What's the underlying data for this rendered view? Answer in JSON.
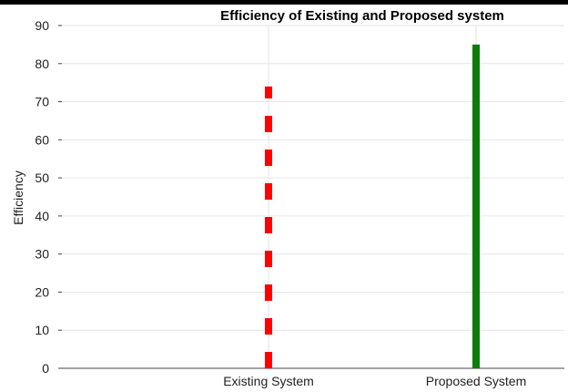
{
  "chart_data": {
    "type": "bar",
    "title": "Efficiency of Existing and Proposed system",
    "xlabel": "",
    "ylabel": "Efficiency",
    "categories": [
      "Existing System",
      "Proposed System"
    ],
    "values": [
      74,
      85
    ],
    "ylim": [
      0,
      90
    ],
    "yticks": [
      "0",
      "10",
      "20",
      "30",
      "40",
      "50",
      "60",
      "70",
      "80",
      "90"
    ],
    "grid": true,
    "bar_styles": [
      {
        "color": "#ff0000",
        "line_style": "dashed"
      },
      {
        "color": "#0a7d0a",
        "line_style": "solid"
      }
    ]
  }
}
